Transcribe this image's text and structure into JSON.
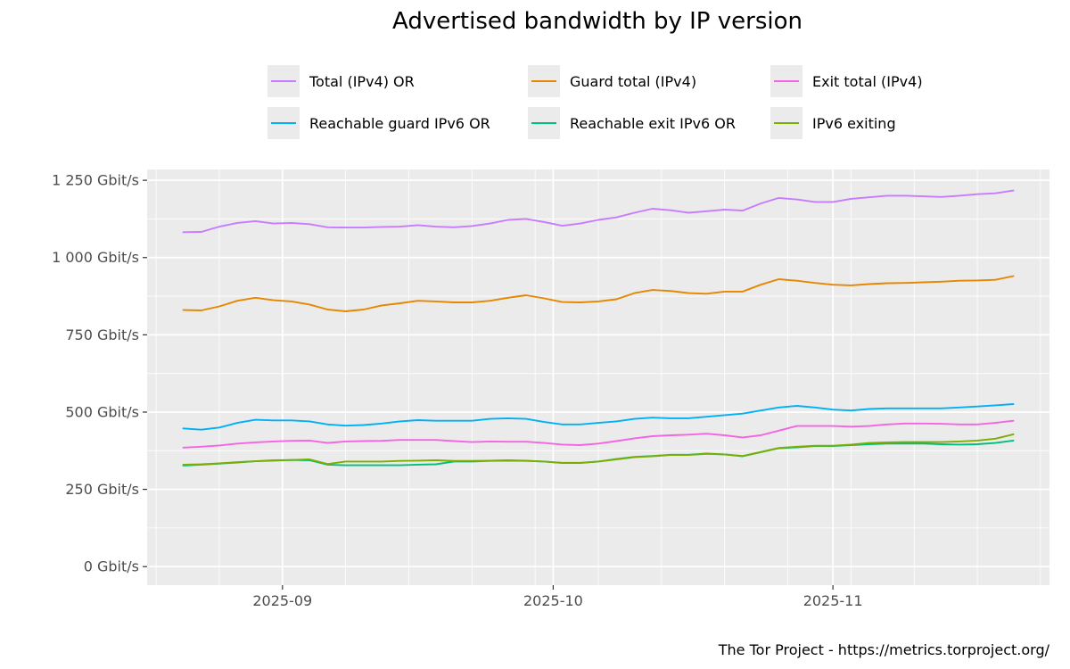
{
  "chart_data": {
    "type": "line",
    "title": "Advertised bandwidth by IP version",
    "caption": "The Tor Project - https://metrics.torproject.org/",
    "xlabel": "",
    "ylabel": "",
    "x_ticks": [
      "2025-09",
      "2025-10",
      "2025-11"
    ],
    "x_tick_dates": [
      "2025-09-01",
      "2025-10-01",
      "2025-11-01"
    ],
    "x_range": [
      "2025-08-17",
      "2025-11-25"
    ],
    "y_ticks": [
      "0 Gbit/s",
      "250 Gbit/s",
      "500 Gbit/s",
      "750 Gbit/s",
      "1 000 Gbit/s",
      "1 250 Gbit/s"
    ],
    "y_tick_values": [
      0,
      250,
      500,
      750,
      1000,
      1250
    ],
    "ylim": [
      -60,
      1285
    ],
    "grid": true,
    "legend_position": "top",
    "x": [
      "2025-08-21",
      "2025-08-23",
      "2025-08-25",
      "2025-08-27",
      "2025-08-29",
      "2025-08-31",
      "2025-09-02",
      "2025-09-04",
      "2025-09-06",
      "2025-09-08",
      "2025-09-10",
      "2025-09-12",
      "2025-09-14",
      "2025-09-16",
      "2025-09-18",
      "2025-09-20",
      "2025-09-22",
      "2025-09-24",
      "2025-09-26",
      "2025-09-28",
      "2025-09-30",
      "2025-10-02",
      "2025-10-04",
      "2025-10-06",
      "2025-10-08",
      "2025-10-10",
      "2025-10-12",
      "2025-10-14",
      "2025-10-16",
      "2025-10-18",
      "2025-10-20",
      "2025-10-22",
      "2025-10-24",
      "2025-10-26",
      "2025-10-28",
      "2025-10-30",
      "2025-11-01",
      "2025-11-03",
      "2025-11-05",
      "2025-11-07",
      "2025-11-09",
      "2025-11-11",
      "2025-11-13",
      "2025-11-15",
      "2025-11-17",
      "2025-11-19",
      "2025-11-21"
    ],
    "series": [
      {
        "name": "Total (IPv4) OR",
        "color": "#C77CFF",
        "values": [
          1082,
          1083,
          1100,
          1112,
          1118,
          1110,
          1112,
          1108,
          1098,
          1097,
          1097,
          1099,
          1100,
          1105,
          1100,
          1098,
          1102,
          1110,
          1122,
          1125,
          1115,
          1103,
          1110,
          1122,
          1130,
          1145,
          1158,
          1153,
          1145,
          1150,
          1155,
          1152,
          1175,
          1193,
          1188,
          1180,
          1180,
          1190,
          1195,
          1200,
          1200,
          1198,
          1196,
          1200,
          1205,
          1208,
          1217
        ]
      },
      {
        "name": "Guard total (IPv4)",
        "color": "#E58700",
        "values": [
          830,
          829,
          842,
          860,
          870,
          862,
          858,
          848,
          832,
          826,
          832,
          845,
          852,
          860,
          858,
          855,
          855,
          860,
          870,
          878,
          868,
          856,
          855,
          858,
          865,
          885,
          895,
          892,
          885,
          883,
          890,
          890,
          912,
          930,
          925,
          918,
          912,
          910,
          914,
          917,
          918,
          920,
          922,
          925,
          926,
          928,
          940
        ]
      },
      {
        "name": "Exit total (IPv4)",
        "color": "#F564E3",
        "values": [
          385,
          388,
          392,
          398,
          402,
          405,
          407,
          408,
          400,
          405,
          406,
          407,
          410,
          410,
          410,
          406,
          403,
          405,
          404,
          404,
          400,
          395,
          393,
          398,
          406,
          415,
          422,
          425,
          427,
          430,
          425,
          418,
          425,
          440,
          455,
          455,
          455,
          453,
          455,
          460,
          463,
          463,
          462,
          460,
          460,
          465,
          472
        ]
      },
      {
        "name": "Reachable guard IPv6 OR",
        "color": "#00B0F6",
        "values": [
          447,
          443,
          450,
          465,
          475,
          473,
          473,
          470,
          460,
          456,
          458,
          463,
          470,
          474,
          472,
          472,
          472,
          478,
          480,
          478,
          468,
          460,
          460,
          465,
          470,
          478,
          482,
          480,
          480,
          485,
          490,
          495,
          505,
          515,
          520,
          515,
          508,
          505,
          510,
          512,
          512,
          512,
          512,
          515,
          518,
          522,
          526
        ]
      },
      {
        "name": "Reachable exit IPv6 OR",
        "color": "#00BF7D",
        "values": [
          327,
          330,
          333,
          337,
          341,
          343,
          345,
          344,
          330,
          328,
          328,
          328,
          328,
          330,
          331,
          340,
          340,
          342,
          343,
          342,
          340,
          335,
          335,
          340,
          348,
          355,
          358,
          362,
          362,
          366,
          363,
          357,
          370,
          383,
          386,
          390,
          390,
          393,
          396,
          398,
          398,
          398,
          396,
          395,
          396,
          400,
          408
        ]
      },
      {
        "name": "IPv6 exiting",
        "color": "#7CAE00",
        "values": [
          330,
          331,
          334,
          338,
          341,
          344,
          345,
          347,
          332,
          340,
          340,
          340,
          342,
          343,
          344,
          342,
          342,
          343,
          344,
          343,
          340,
          336,
          336,
          340,
          347,
          354,
          357,
          361,
          361,
          365,
          363,
          358,
          371,
          384,
          388,
          391,
          391,
          395,
          400,
          402,
          403,
          403,
          403,
          405,
          408,
          414,
          428
        ]
      }
    ]
  }
}
